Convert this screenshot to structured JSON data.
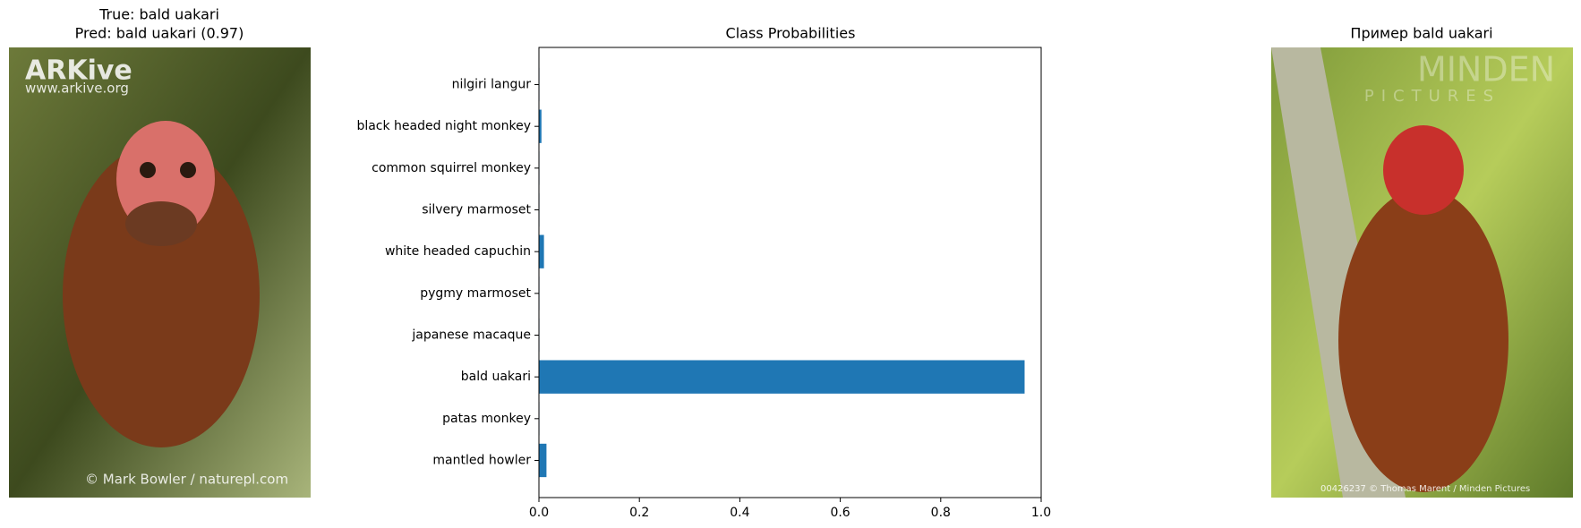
{
  "left_panel": {
    "title_lines": [
      "True: bald uakari",
      "Pred: bald uakari (0.97)"
    ],
    "watermarks": [
      "ARKive",
      "www.arkive.org",
      "© Mark Bowler / naturepl.com"
    ]
  },
  "chart_data": {
    "type": "barh",
    "title": "Class Probabilities",
    "categories": [
      "mantled howler",
      "patas monkey",
      "bald uakari",
      "japanese macaque",
      "pygmy marmoset",
      "white headed capuchin",
      "silvery marmoset",
      "common squirrel monkey",
      "black headed night monkey",
      "nilgiri langur"
    ],
    "values": [
      0.015,
      0.001,
      0.967,
      0.001,
      0.001,
      0.01,
      0.001,
      0.001,
      0.005,
      0.001
    ],
    "color": "#1f77b4",
    "xlim": [
      0,
      1
    ],
    "xticks": [
      {
        "value": 0,
        "label": "0.0"
      },
      0.2,
      0.4,
      0.6,
      0.8,
      {
        "value": 1,
        "label": "1.0"
      }
    ],
    "grid": false
  },
  "right_panel": {
    "title": "Пример bald uakari",
    "watermarks": [
      "MINDEN",
      "PICTURES",
      "00426237 © Thomas Marent / Minden Pictures"
    ]
  }
}
